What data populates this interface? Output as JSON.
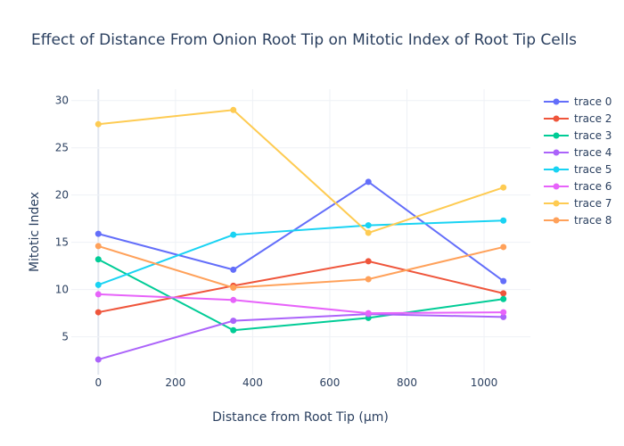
{
  "chart_data": {
    "type": "line",
    "title": "Effect of Distance From Onion Root Tip on Mitotic Index of Root Tip Cells",
    "xlabel": "Distance from Root Tip (μm)",
    "ylabel": "Mitotic Index",
    "x": [
      0,
      350,
      700,
      1050
    ],
    "xlim": [
      -70,
      1120
    ],
    "ylim": [
      1,
      31.2
    ],
    "xticks": [
      0,
      200,
      400,
      600,
      800,
      1000
    ],
    "yticks": [
      5,
      10,
      15,
      20,
      25,
      30
    ],
    "grid": true,
    "legend_position": "right",
    "series": [
      {
        "name": "trace 0",
        "color": "#636efa",
        "values": [
          15.9,
          12.1,
          21.4,
          10.9
        ]
      },
      {
        "name": "trace 2",
        "color": "#ef553b",
        "values": [
          7.6,
          10.4,
          13.0,
          9.6
        ]
      },
      {
        "name": "trace 3",
        "color": "#00cc96",
        "values": [
          13.2,
          5.7,
          7.0,
          9.0
        ]
      },
      {
        "name": "trace 4",
        "color": "#ab63fa",
        "values": [
          2.6,
          6.7,
          7.4,
          7.1
        ]
      },
      {
        "name": "trace 5",
        "color": "#19d3f3",
        "values": [
          10.5,
          15.8,
          16.8,
          17.3
        ]
      },
      {
        "name": "trace 6",
        "color": "#e763fa",
        "values": [
          9.5,
          8.9,
          7.5,
          7.6
        ]
      },
      {
        "name": "trace 7",
        "color": "#fecb52",
        "values": [
          27.5,
          29.0,
          16.0,
          20.8
        ]
      },
      {
        "name": "trace 8",
        "color": "#ffa15a",
        "values": [
          14.6,
          10.2,
          11.1,
          14.5
        ]
      }
    ]
  }
}
